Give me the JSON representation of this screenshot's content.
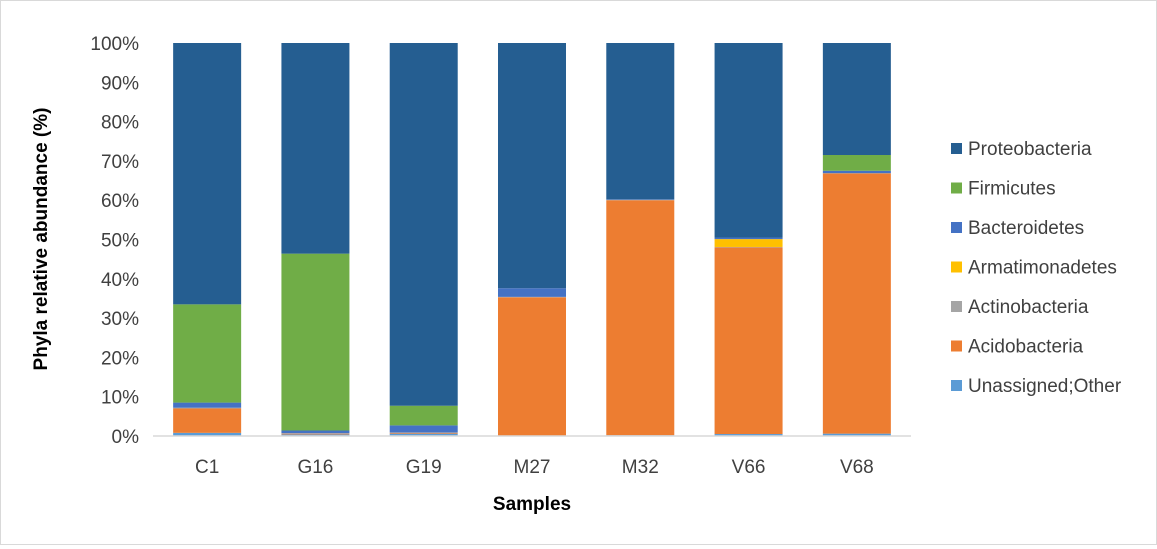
{
  "chart_data": {
    "type": "bar",
    "stacked": true,
    "percent_stacked": true,
    "categories": [
      "C1",
      "G16",
      "G19",
      "M27",
      "M32",
      "V66",
      "V68"
    ],
    "series": [
      {
        "name": "Unassigned;Other",
        "color": "#5b9bd5",
        "values": [
          0.8,
          0.4,
          0.6,
          0.1,
          0.2,
          0.5,
          0.6
        ]
      },
      {
        "name": "Acidobacteria",
        "color": "#ed7d31",
        "values": [
          6.2,
          0.2,
          0.2,
          35.2,
          59.8,
          47.5,
          66.2
        ]
      },
      {
        "name": "Actinobacteria",
        "color": "#a5a5a5",
        "values": [
          0.2,
          0.1,
          0.1,
          0.1,
          0.1,
          0.1,
          0.1
        ]
      },
      {
        "name": "Armatimonadetes",
        "color": "#ffc000",
        "values": [
          0.0,
          0.0,
          0.0,
          0.0,
          0.0,
          2.0,
          0.0
        ]
      },
      {
        "name": "Bacteroidetes",
        "color": "#4472c4",
        "values": [
          1.3,
          0.7,
          1.8,
          2.2,
          0.1,
          0.4,
          0.6
        ]
      },
      {
        "name": "Firmicutes",
        "color": "#70ad47",
        "values": [
          25.0,
          45.0,
          5.0,
          0.0,
          0.0,
          0.0,
          4.0
        ]
      },
      {
        "name": "Proteobacteria",
        "color": "#255e91",
        "values": [
          66.5,
          53.6,
          92.3,
          62.4,
          39.8,
          49.5,
          28.5
        ]
      }
    ],
    "legend_order": [
      "Proteobacteria",
      "Firmicutes",
      "Bacteroidetes",
      "Armatimonadetes",
      "Actinobacteria",
      "Acidobacteria",
      "Unassigned;Other"
    ],
    "yticks": [
      "0%",
      "10%",
      "20%",
      "30%",
      "40%",
      "50%",
      "60%",
      "70%",
      "80%",
      "90%",
      "100%"
    ],
    "ylim": [
      0,
      100
    ],
    "xlabel": "Samples",
    "ylabel": "Phyla relative abundance (%)",
    "grid": false,
    "legend_position": "right"
  }
}
